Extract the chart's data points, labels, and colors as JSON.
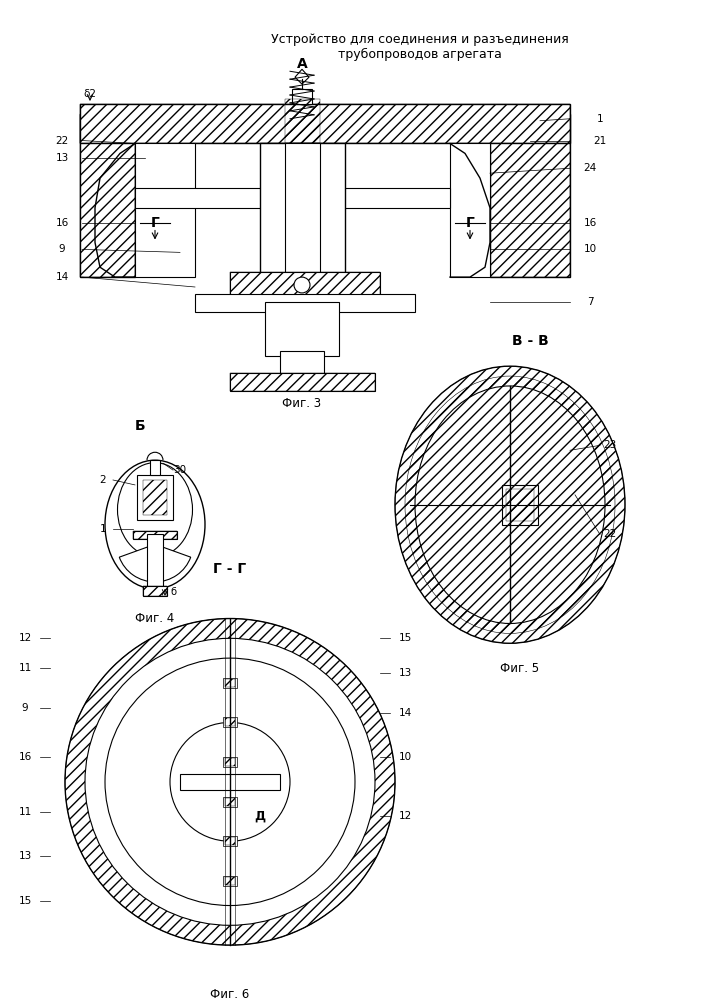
{
  "title_line1": "Устройство для соединения и разъединения",
  "title_line2": "трубопроводов агрегата",
  "fig3_label": "Фиг. 3",
  "fig4_label": "Фиг. 4",
  "fig5_label": "Фиг. 5",
  "fig6_label": "Фиг. 6",
  "line_color": "#000000",
  "hatch_color": "#000000",
  "bg_color": "#ffffff",
  "font_size_title": 9,
  "font_size_label": 8,
  "font_size_num": 7.5,
  "font_size_fig": 8.5
}
